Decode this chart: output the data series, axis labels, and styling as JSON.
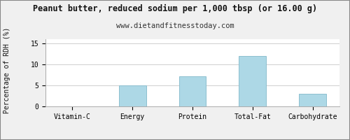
{
  "title": "Peanut butter, reduced sodium per 1,000 tbsp (or 16.00 g)",
  "subtitle": "www.dietandfitnesstoday.com",
  "categories": [
    "Vitamin-C",
    "Energy",
    "Protein",
    "Total-Fat",
    "Carbohydrate"
  ],
  "values": [
    0,
    5,
    7.2,
    12,
    3
  ],
  "bar_color": "#add8e6",
  "bar_edge_color": "#8cbfcf",
  "ylabel": "Percentage of RDH (%)",
  "ylim": [
    0,
    16
  ],
  "yticks": [
    0,
    5,
    10,
    15
  ],
  "background_color": "#f0f0f0",
  "plot_bg_color": "#ffffff",
  "title_fontsize": 8.5,
  "subtitle_fontsize": 7.5,
  "tick_fontsize": 7,
  "ylabel_fontsize": 7,
  "grid_color": "#c8c8c8",
  "border_color": "#aaaaaa",
  "fig_border_color": "#888888"
}
